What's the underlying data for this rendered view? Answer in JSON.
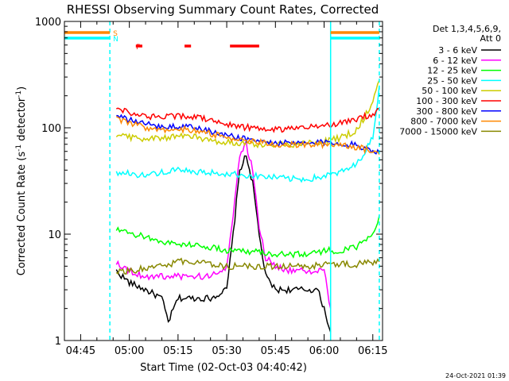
{
  "chart_data": {
    "type": "line",
    "title": "RHESSI Observing Summary Count Rates, Corrected",
    "xlabel": "Start Time (02-Oct-03 04:40:42)",
    "ylabel": "Corrected Count Rate (s",
    "ylabel_sup1": "-1",
    "ylabel_mid": " detector",
    "ylabel_sup2": "-1",
    "ylabel_end": ")",
    "y_scale": "log",
    "xlim": [
      "04:40",
      "06:18"
    ],
    "ylim": [
      1,
      1000
    ],
    "x_ticks": [
      "04:45",
      "05:00",
      "05:15",
      "05:30",
      "05:45",
      "06:00",
      "06:15"
    ],
    "y_ticks": [
      "1",
      "10",
      "100",
      "1000"
    ],
    "legend": {
      "placement": "right",
      "header_line1": "Det 1,3,4,5,6,9,",
      "header_line2": "Att 0",
      "entries": [
        {
          "label": "3 - 6 keV",
          "color": "#000000"
        },
        {
          "label": "6 - 12 keV",
          "color": "#ff00ff"
        },
        {
          "label": "12 - 25 keV",
          "color": "#00ff00"
        },
        {
          "label": "25 - 50 keV",
          "color": "#00ffff"
        },
        {
          "label": "50 - 100 keV",
          "color": "#cccc00"
        },
        {
          "label": "100 - 300 keV",
          "color": "#ff0000"
        },
        {
          "label": "300 - 800 keV",
          "color": "#0000ff"
        },
        {
          "label": "800 - 7000 keV",
          "color": "#ff8800"
        },
        {
          "label": "7000 - 15000 keV",
          "color": "#888800"
        }
      ]
    },
    "flags": [
      {
        "label": "S",
        "color": "#ff8800",
        "segments": [
          [
            "04:40",
            "04:54"
          ],
          [
            "06:02",
            "06:17"
          ]
        ]
      },
      {
        "label": "N",
        "color": "#00ffff",
        "segments": [
          [
            "04:40",
            "04:54"
          ],
          [
            "06:02",
            "06:17"
          ]
        ]
      },
      {
        "label": "F",
        "color": "#ff0000",
        "segments": [
          [
            "05:02",
            "05:04"
          ],
          [
            "05:17",
            "05:19"
          ],
          [
            "05:31",
            "05:40"
          ]
        ]
      }
    ],
    "vertical_lines": [
      {
        "time": "04:54",
        "color": "#00ffff",
        "style": "dashed"
      },
      {
        "time": "06:02",
        "color": "#00ffff",
        "style": "solid"
      },
      {
        "time": "06:17",
        "color": "#00ffff",
        "style": "dashed"
      }
    ],
    "series": [
      {
        "name": "3 - 6 keV",
        "color": "#000000",
        "x": [
          "04:56",
          "05:00",
          "05:05",
          "05:10",
          "05:12",
          "05:15",
          "05:20",
          "05:25",
          "05:30",
          "05:32",
          "05:34",
          "05:36",
          "05:38",
          "05:40",
          "05:42",
          "05:45",
          "05:50",
          "05:55",
          "05:58",
          "06:00",
          "06:02"
        ],
        "y": [
          4.5,
          3.5,
          3.0,
          2.5,
          1.5,
          2.5,
          2.5,
          2.5,
          3.0,
          10,
          40,
          55,
          30,
          10,
          4,
          3.0,
          3.0,
          3.0,
          3.0,
          2.0,
          1.2
        ]
      },
      {
        "name": "6 - 12 keV",
        "color": "#ff00ff",
        "x": [
          "04:56",
          "05:00",
          "05:05",
          "05:10",
          "05:15",
          "05:20",
          "05:25",
          "05:30",
          "05:32",
          "05:34",
          "05:36",
          "05:38",
          "05:40",
          "05:42",
          "05:45",
          "05:50",
          "05:55",
          "06:00",
          "06:02"
        ],
        "y": [
          5.5,
          4.5,
          4.0,
          4.0,
          4.0,
          4.0,
          4.0,
          5.0,
          15,
          55,
          70,
          40,
          12,
          6,
          5.0,
          4.5,
          4.5,
          4.5,
          2.0
        ]
      },
      {
        "name": "12 - 25 keV",
        "color": "#00ff00",
        "x": [
          "04:56",
          "05:00",
          "05:05",
          "05:10",
          "05:15",
          "05:20",
          "05:25",
          "05:30",
          "05:35",
          "05:40",
          "05:45",
          "05:50",
          "05:55",
          "06:00",
          "06:05",
          "06:10",
          "06:15",
          "06:17"
        ],
        "y": [
          11,
          10,
          9.5,
          8.5,
          8.0,
          8.0,
          7.5,
          7.0,
          7.0,
          6.8,
          6.5,
          6.5,
          6.5,
          7.0,
          7.0,
          7.5,
          10,
          15
        ]
      },
      {
        "name": "25 - 50 keV",
        "color": "#00ffff",
        "x": [
          "04:56",
          "05:00",
          "05:05",
          "05:10",
          "05:15",
          "05:20",
          "05:25",
          "05:30",
          "05:35",
          "05:40",
          "05:45",
          "05:50",
          "05:55",
          "06:00",
          "06:05",
          "06:10",
          "06:15",
          "06:17"
        ],
        "y": [
          38,
          37,
          36,
          38,
          40,
          38,
          38,
          37,
          36,
          35,
          34,
          33,
          33,
          35,
          38,
          45,
          80,
          250
        ]
      },
      {
        "name": "50 - 100 keV",
        "color": "#cccc00",
        "x": [
          "04:56",
          "05:00",
          "05:05",
          "05:10",
          "05:15",
          "05:20",
          "05:25",
          "05:30",
          "05:35",
          "05:40",
          "05:45",
          "05:50",
          "05:55",
          "06:00",
          "06:05",
          "06:10",
          "06:15",
          "06:17"
        ],
        "y": [
          88,
          82,
          78,
          80,
          85,
          82,
          76,
          73,
          72,
          70,
          70,
          70,
          72,
          75,
          80,
          95,
          170,
          280
        ]
      },
      {
        "name": "100 - 300 keV",
        "color": "#ff0000",
        "x": [
          "04:56",
          "05:00",
          "05:05",
          "05:10",
          "05:15",
          "05:20",
          "05:25",
          "05:30",
          "05:35",
          "05:40",
          "05:45",
          "05:50",
          "05:55",
          "06:00",
          "06:05",
          "06:10",
          "06:15",
          "06:17"
        ],
        "y": [
          155,
          140,
          128,
          125,
          130,
          128,
          118,
          108,
          102,
          98,
          97,
          98,
          100,
          105,
          110,
          120,
          135,
          150
        ]
      },
      {
        "name": "300 - 800 keV",
        "color": "#0000ff",
        "x": [
          "04:56",
          "05:00",
          "05:05",
          "05:10",
          "05:15",
          "05:20",
          "05:25",
          "05:30",
          "05:35",
          "05:40",
          "05:45",
          "05:50",
          "05:55",
          "06:00",
          "06:05",
          "06:10",
          "06:15",
          "06:17"
        ],
        "y": [
          128,
          118,
          108,
          103,
          104,
          100,
          92,
          85,
          80,
          75,
          72,
          71,
          71,
          73,
          72,
          68,
          62,
          58
        ]
      },
      {
        "name": "800 - 7000 keV",
        "color": "#ff8800",
        "x": [
          "04:56",
          "05:00",
          "05:05",
          "05:10",
          "05:15",
          "05:20",
          "05:25",
          "05:30",
          "05:35",
          "05:40",
          "05:45",
          "05:50",
          "05:55",
          "06:00",
          "06:05",
          "06:10",
          "06:15",
          "06:17"
        ],
        "y": [
          120,
          110,
          100,
          97,
          98,
          95,
          88,
          82,
          77,
          73,
          70,
          69,
          69,
          70,
          70,
          66,
          60,
          56
        ]
      },
      {
        "name": "7000 - 15000 keV",
        "color": "#888800",
        "x": [
          "04:56",
          "05:00",
          "05:05",
          "05:10",
          "05:15",
          "05:20",
          "05:25",
          "05:30",
          "05:35",
          "05:40",
          "05:45",
          "05:50",
          "05:55",
          "06:00",
          "06:05",
          "06:10",
          "06:15",
          "06:17"
        ],
        "y": [
          4.5,
          4.5,
          4.8,
          5.0,
          5.5,
          5.5,
          5.3,
          5.0,
          5.0,
          5.0,
          5.0,
          5.0,
          5.0,
          5.2,
          5.2,
          5.2,
          5.5,
          5.5
        ]
      }
    ]
  },
  "footer_timestamp": "24-Oct-2021 01:39"
}
